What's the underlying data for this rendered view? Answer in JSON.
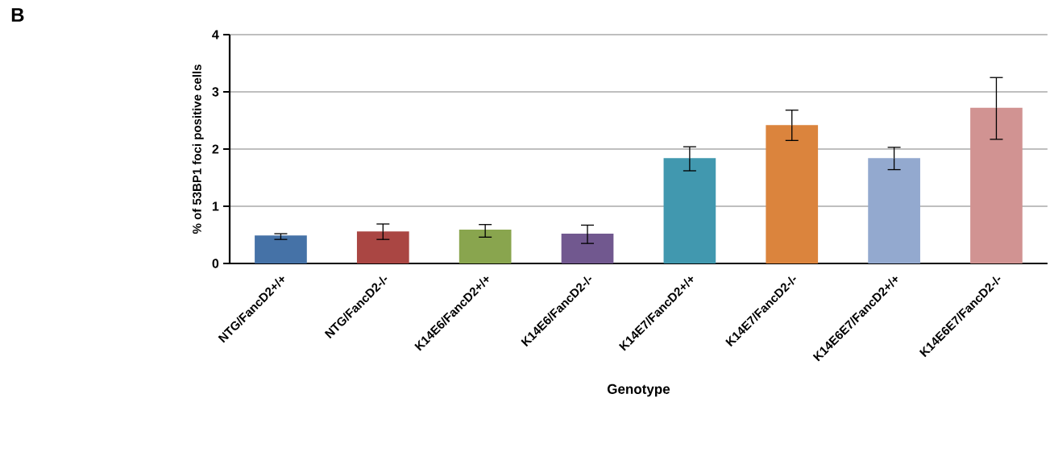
{
  "chart_data": {
    "type": "bar",
    "ylabel": "% of 53BP1 foci positive cells",
    "xlabel": "Genotype",
    "annotations": [
      "B"
    ],
    "categories": [
      "NTG/FancD2+/+",
      "NTG/FancD2-/-",
      "K14E6/FancD2+/+",
      "K14E6/FancD2-/-",
      "K14E7/FancD2+/+",
      "K14E7/FancD2-/-",
      "K14E6E7/FancD2+/+",
      "K14E6E7/FancD2-/-"
    ],
    "values": [
      0.49,
      0.56,
      0.59,
      0.52,
      1.84,
      2.42,
      1.84,
      2.72
    ],
    "errors": [
      [
        0.42,
        0.52
      ],
      [
        0.42,
        0.69
      ],
      [
        0.46,
        0.68
      ],
      [
        0.35,
        0.67
      ],
      [
        1.62,
        2.04
      ],
      [
        2.15,
        2.68
      ],
      [
        1.64,
        2.03
      ],
      [
        2.17,
        3.25
      ]
    ],
    "colors": [
      "#4572a7",
      "#aa4643",
      "#89a54e",
      "#71588f",
      "#4198af",
      "#db843d",
      "#93a9cf",
      "#d19392"
    ],
    "ylim": [
      0,
      4
    ],
    "yticks": [
      0,
      1,
      2,
      3,
      4
    ],
    "grid": "y"
  }
}
